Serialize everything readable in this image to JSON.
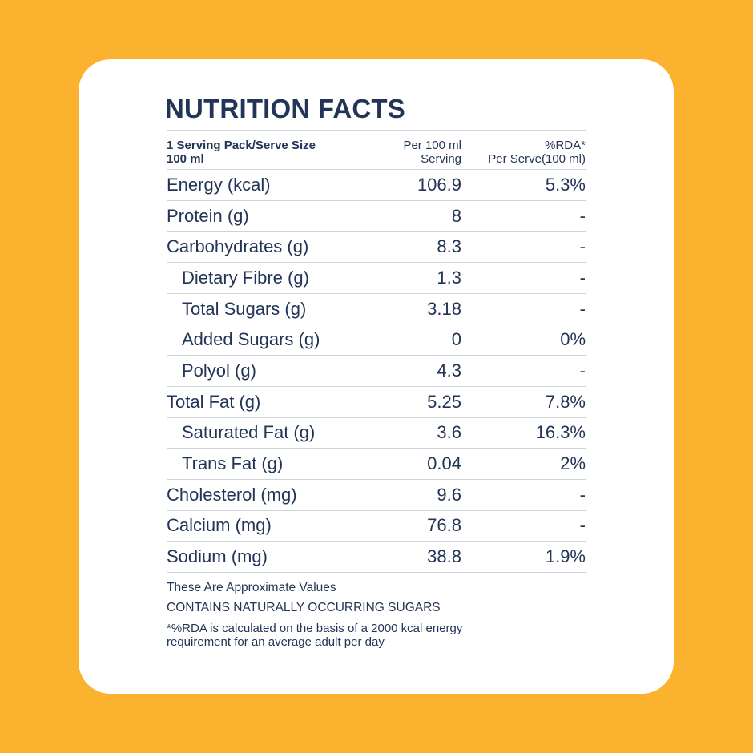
{
  "title": "NUTRITION FACTS",
  "header": {
    "col1_line1": "1 Serving Pack/Serve Size",
    "col1_line2": "100 ml",
    "col2_line1": "Per 100 ml",
    "col2_line2": "Serving",
    "col3_line1": "%RDA*",
    "col3_line2": "Per Serve(100 ml)"
  },
  "rows": [
    {
      "name": "Energy (kcal)",
      "value": "106.9",
      "rda": "5.3%"
    },
    {
      "name": "Protein (g)",
      "value": "8",
      "rda": "-"
    },
    {
      "name": "Carbohydrates (g)",
      "value": "8.3",
      "rda": "-"
    },
    {
      "name": "Dietary Fibre (g)",
      "value": "1.3",
      "rda": "-"
    },
    {
      "name": "Total Sugars (g)",
      "value": "3.18",
      "rda": "-"
    },
    {
      "name": "Added Sugars (g)",
      "value": "0",
      "rda": "0%"
    },
    {
      "name": "Polyol (g)",
      "value": "4.3",
      "rda": "-"
    },
    {
      "name": "Total Fat (g)",
      "value": "5.25",
      "rda": "7.8%"
    },
    {
      "name": "Saturated Fat (g)",
      "value": "3.6",
      "rda": "16.3%"
    },
    {
      "name": "Trans Fat (g)",
      "value": "0.04",
      "rda": "2%"
    },
    {
      "name": "Cholesterol (mg)",
      "value": "9.6",
      "rda": "-"
    },
    {
      "name": "Calcium (mg)",
      "value": "76.8",
      "rda": "-"
    },
    {
      "name": "Sodium (mg)",
      "value": "38.8",
      "rda": "1.9%"
    }
  ],
  "notes": {
    "approximate": "These Are Approximate Values",
    "sugars": "CONTAINS NATURALLY OCCURRING SUGARS",
    "rda_line1": "*%RDA is calculated on the basis of a 2000 kcal energy",
    "rda_line2": "requirement for an average adult per day"
  },
  "colors": {
    "background": "#fbb22e",
    "card": "#ffffff",
    "text": "#233556"
  }
}
